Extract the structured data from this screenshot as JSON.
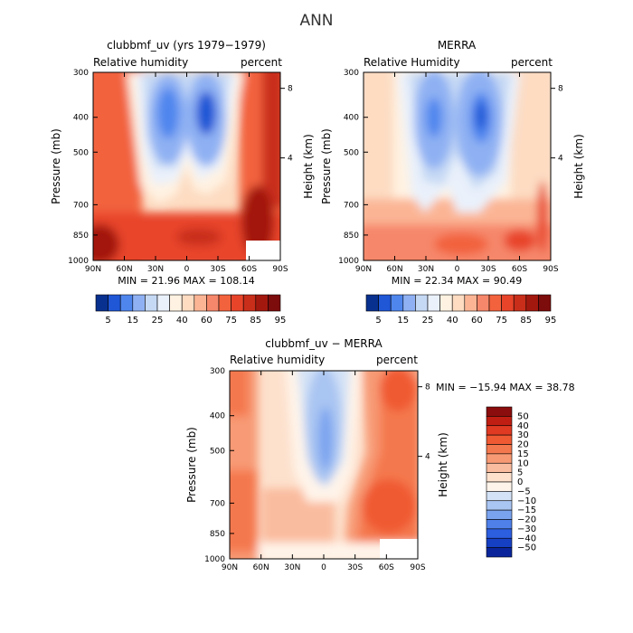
{
  "page_title": "ANN",
  "chart_data": [
    {
      "type": "heatmap",
      "title": "clubbmf_uv (yrs 1979−1979)",
      "left_label": "Relative humidity",
      "right_label": "percent",
      "ylabel": "Pressure (mb)",
      "ylabel_right": "Height (km)",
      "x_ticks": [
        "90N",
        "60N",
        "30N",
        "0",
        "30S",
        "60S",
        "90S"
      ],
      "y_ticks": [
        "300",
        "400",
        "500",
        "700",
        "850",
        "1000"
      ],
      "y_ticks_right": [
        "8",
        "4"
      ],
      "stats": "MIN =  21.96   MAX = 108.14",
      "colorbar_labels": [
        "5",
        "15",
        "25",
        "40",
        "60",
        "75",
        "85",
        "95"
      ],
      "colorbar_colors": [
        "#08308e",
        "#1f57d6",
        "#4f86ee",
        "#8fb1f3",
        "#c6d9f4",
        "#eaf1fb",
        "#fff2e2",
        "#fddcc2",
        "#fbb595",
        "#f6876a",
        "#f2623d",
        "#e8442a",
        "#c92e1a",
        "#a3180e",
        "#7d0c0c"
      ]
    },
    {
      "type": "heatmap",
      "title": "MERRA",
      "left_label": "Relative Humidity",
      "right_label": "percent",
      "ylabel": "Pressure (mb)",
      "ylabel_right": "Height (km)",
      "x_ticks": [
        "90N",
        "60N",
        "30N",
        "0",
        "30S",
        "60S",
        "90S"
      ],
      "y_ticks": [
        "300",
        "400",
        "500",
        "700",
        "850",
        "1000"
      ],
      "y_ticks_right": [
        "8",
        "4"
      ],
      "stats": "MIN =  22.34   MAX =  90.49",
      "colorbar_labels": [
        "5",
        "15",
        "25",
        "40",
        "60",
        "75",
        "85",
        "95"
      ],
      "colorbar_colors": [
        "#08308e",
        "#1f57d6",
        "#4f86ee",
        "#8fb1f3",
        "#c6d9f4",
        "#eaf1fb",
        "#fff2e2",
        "#fddcc2",
        "#fbb595",
        "#f6876a",
        "#f2623d",
        "#e8442a",
        "#c92e1a",
        "#a3180e",
        "#7d0c0c"
      ]
    },
    {
      "type": "heatmap",
      "title": "clubbmf_uv − MERRA",
      "left_label": "Relative humidity",
      "right_label": "percent",
      "ylabel": "Pressure (mb)",
      "ylabel_right": "Height (km)",
      "x_ticks": [
        "90N",
        "60N",
        "30N",
        "0",
        "30S",
        "60S",
        "90S"
      ],
      "y_ticks": [
        "300",
        "400",
        "500",
        "700",
        "850",
        "1000"
      ],
      "y_ticks_right": [
        "8",
        "4"
      ],
      "stats": "MIN = −15.94   MAX =  38.78",
      "colorbar_labels": [
        "50",
        "40",
        "30",
        "20",
        "15",
        "10",
        "5",
        "0",
        "−5",
        "−10",
        "−15",
        "−20",
        "−30",
        "−40",
        "−50"
      ],
      "colorbar_colors": [
        "#8b0d0d",
        "#c01e12",
        "#e03a22",
        "#f05a33",
        "#f4784e",
        "#f79a74",
        "#fabc9f",
        "#fde1cd",
        "#fff4ea",
        "#d3e2f6",
        "#a9c5f2",
        "#7aa3ef",
        "#4f80ea",
        "#2c5ee0",
        "#1640c4",
        "#0a259b"
      ]
    }
  ]
}
